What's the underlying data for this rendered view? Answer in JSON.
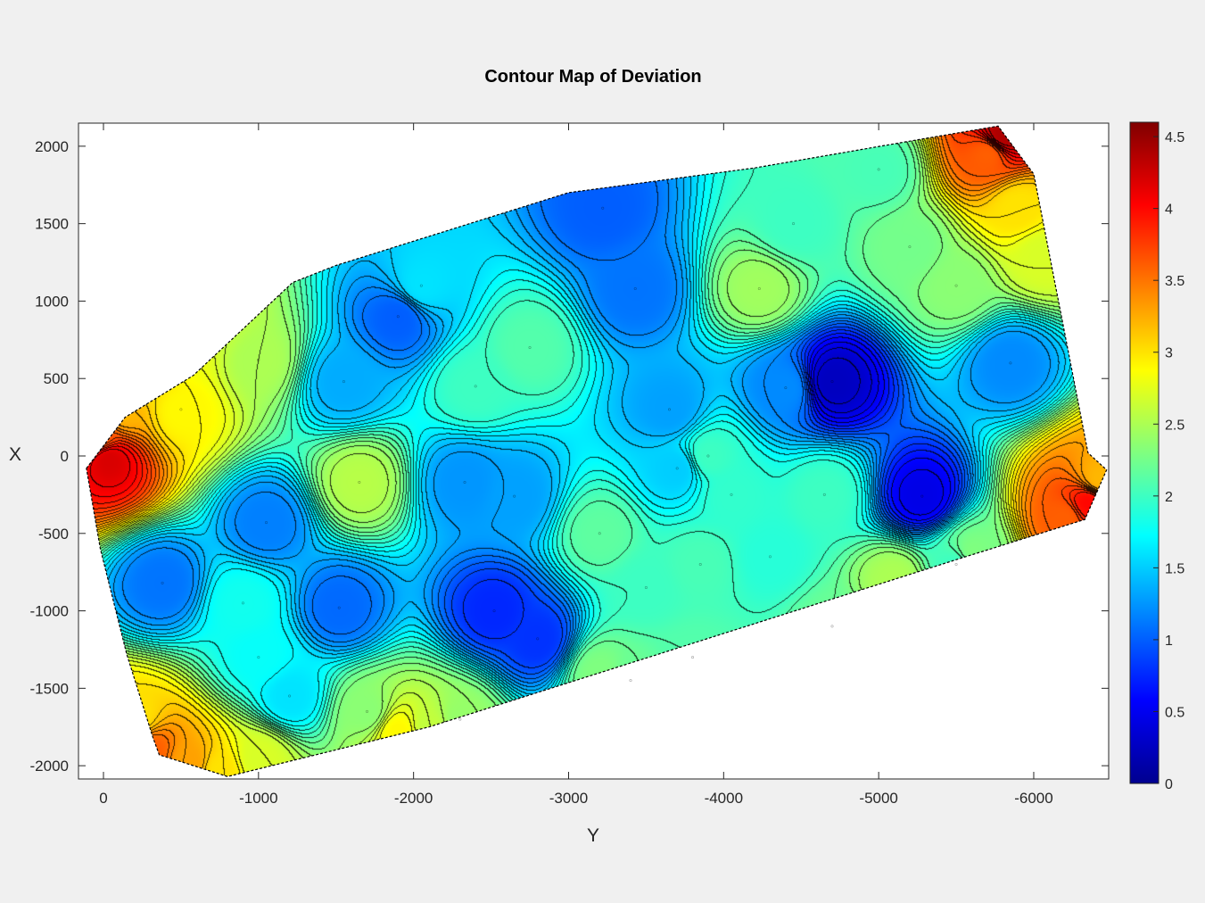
{
  "chart_data": {
    "type": "heatmap",
    "subtype": "filled-contour",
    "title": "Contour Map of Deviation",
    "xlabel": "Y",
    "ylabel": "X",
    "x_direction": "reversed",
    "xlim": [
      150,
      -6500
    ],
    "ylim": [
      -2100,
      2150
    ],
    "x_ticks": [
      0,
      -1000,
      -2000,
      -3000,
      -4000,
      -5000,
      -6000
    ],
    "x_tick_labels": [
      "0",
      "-1000",
      "-2000",
      "-3000",
      "-4000",
      "-5000",
      "-6000"
    ],
    "y_ticks": [
      2000,
      1500,
      1000,
      500,
      0,
      -500,
      -1000,
      -1500,
      -2000
    ],
    "y_tick_labels": [
      "2000",
      "1500",
      "1000",
      "500",
      "0",
      "-500",
      "-1000",
      "-1500",
      "-2000"
    ],
    "colorbar": {
      "colormap": "jet",
      "range": [
        0,
        4.6
      ],
      "ticks": [
        0,
        0.5,
        1,
        1.5,
        2,
        2.5,
        3,
        3.5,
        4,
        4.5
      ],
      "tick_labels": [
        "0",
        "0.5",
        "1",
        "1.5",
        "2",
        "2.5",
        "3",
        "3.5",
        "4",
        "4.5"
      ]
    },
    "colors": {
      "jet": [
        "#00008F",
        "#0000FF",
        "#00FFFF",
        "#FFFF00",
        "#FF0000",
        "#800000"
      ],
      "contour_line": "#000000"
    },
    "domain_boundary": [
      [
        110,
        -80
      ],
      [
        -140,
        250
      ],
      [
        -580,
        520
      ],
      [
        -1220,
        1120
      ],
      [
        -1500,
        1230
      ],
      [
        -3000,
        1700
      ],
      [
        -4200,
        1860
      ],
      [
        -5300,
        2050
      ],
      [
        -5770,
        2130
      ],
      [
        -6000,
        1820
      ],
      [
        -6350,
        20
      ],
      [
        -6470,
        -90
      ],
      [
        -6330,
        -410
      ],
      [
        -5530,
        -660
      ],
      [
        -2100,
        -1750
      ],
      [
        -800,
        -2070
      ],
      [
        -550,
        -1990
      ],
      [
        -360,
        -1930
      ],
      [
        -320,
        -1820
      ],
      [
        -150,
        -1280
      ],
      [
        20,
        -600
      ]
    ],
    "extrema": [
      {
        "y": -4700,
        "x": 480,
        "value": 0.25
      },
      {
        "y": -5280,
        "x": -260,
        "value": 0.45
      },
      {
        "y": -2520,
        "x": -1000,
        "value": 0.75
      },
      {
        "y": -2800,
        "x": -1180,
        "value": 0.8
      },
      {
        "y": -3220,
        "x": 1600,
        "value": 1.0
      },
      {
        "y": -1900,
        "x": 900,
        "value": 1.0
      },
      {
        "y": -3430,
        "x": 1080,
        "value": 1.1
      },
      {
        "y": -1520,
        "x": -980,
        "value": 1.05
      },
      {
        "y": -380,
        "x": -820,
        "value": 1.1
      },
      {
        "y": -1050,
        "x": -430,
        "value": 1.15
      },
      {
        "y": -2330,
        "x": -170,
        "value": 1.25
      },
      {
        "y": -4400,
        "x": 440,
        "value": 1.2
      },
      {
        "y": -5850,
        "x": 600,
        "value": 1.2
      },
      {
        "y": -2650,
        "x": -260,
        "value": 1.3
      },
      {
        "y": -1550,
        "x": 480,
        "value": 1.35
      },
      {
        "y": -3650,
        "x": 300,
        "value": 1.3
      },
      {
        "y": -3700,
        "x": -80,
        "value": 1.5
      },
      {
        "y": -1650,
        "x": -170,
        "value": 2.55
      },
      {
        "y": -4230,
        "x": 1080,
        "value": 2.45
      },
      {
        "y": -5500,
        "x": 1100,
        "value": 2.35
      },
      {
        "y": -5200,
        "x": 1350,
        "value": 2.25
      },
      {
        "y": -4450,
        "x": 1500,
        "value": 2.0
      },
      {
        "y": -5000,
        "x": 1850,
        "value": 2.05
      },
      {
        "y": -3200,
        "x": -500,
        "value": 2.15
      },
      {
        "y": -2750,
        "x": 700,
        "value": 2.1
      },
      {
        "y": -2400,
        "x": 450,
        "value": 2.0
      },
      {
        "y": -3900,
        "x": 0,
        "value": 2.0
      },
      {
        "y": -4650,
        "x": -250,
        "value": 2.0
      },
      {
        "y": -4050,
        "x": -250,
        "value": 1.95
      },
      {
        "y": -3850,
        "x": -700,
        "value": 2.05
      },
      {
        "y": -3500,
        "x": -850,
        "value": 2.0
      },
      {
        "y": -1700,
        "x": -1650,
        "value": 2.35
      },
      {
        "y": -1200,
        "x": -1550,
        "value": 1.6
      },
      {
        "y": -1000,
        "x": -1300,
        "value": 1.75
      },
      {
        "y": -900,
        "x": -950,
        "value": 1.8
      },
      {
        "y": -4300,
        "x": -650,
        "value": 1.9
      },
      {
        "y": -2050,
        "x": 1100,
        "value": 1.6
      },
      {
        "y": -1000,
        "x": 620,
        "value": 2.5
      },
      {
        "y": -500,
        "x": 300,
        "value": 2.9
      },
      {
        "y": -2300,
        "x": -1700,
        "value": 2.4
      },
      {
        "y": -3400,
        "x": -1450,
        "value": 2.2
      },
      {
        "y": -4700,
        "x": -1100,
        "value": 2.2
      },
      {
        "y": -5500,
        "x": -700,
        "value": 2.0
      },
      {
        "y": -3800,
        "x": -1300,
        "value": 2.1
      }
    ]
  }
}
